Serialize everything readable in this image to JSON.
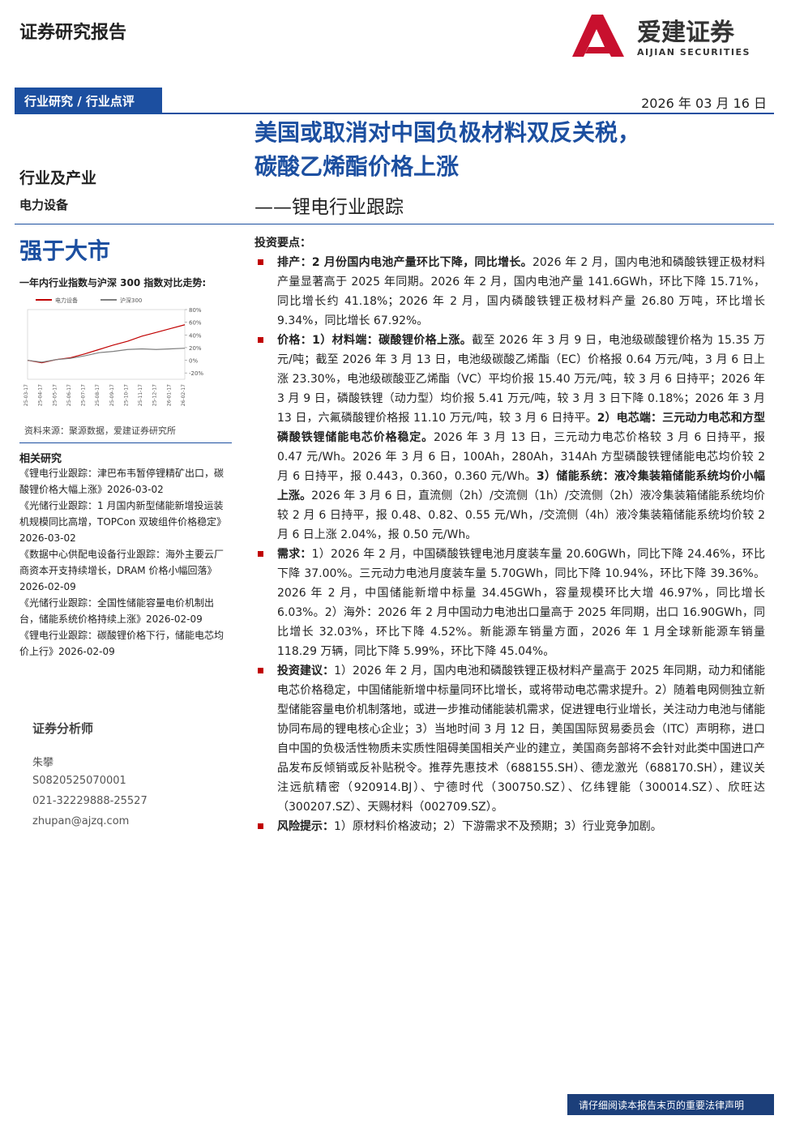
{
  "header": {
    "doc_type": "证券研究报告",
    "logo_name": "爱建证券",
    "logo_en": "AIJIAN SECURITIES",
    "category": "行业研究 / 行业点评",
    "date": "2026 年 03 月 16 日"
  },
  "title": {
    "line1": "美国或取消对中国负极材料双反关税，",
    "line2": "碳酸乙烯酯价格上涨",
    "subtitle": "——锂电行业跟踪"
  },
  "sidebar": {
    "sector_label": "行业及产业",
    "sector": "电力设备",
    "rating": "强于大市",
    "chart_caption": "一年内行业指数与沪深 300 指数对比走势:",
    "source": "资料来源：聚源数据，爱建证券研究所",
    "related_title": "相关研究",
    "related": [
      "《锂电行业跟踪：津巴布韦暂停锂精矿出口，碳酸锂价格大幅上涨》2026-03-02",
      "《光储行业跟踪：1 月国内新型储能新增投运装机规模同比高增，TOPCon 双玻组件价格稳定》2026-03-02",
      "《数据中心供配电设备行业跟踪：海外主要云厂商资本开支持续增长，DRAM 价格小幅回落》2026-02-09",
      "《光储行业跟踪：全国性储能容量电价机制出台，储能系统价格持续上涨》2026-02-09",
      "《锂电行业跟踪：碳酸锂价格下行，储能电芯均价上行》2026-02-09"
    ],
    "analyst_title": "证券分析师",
    "analyst": {
      "name": "朱攀",
      "cert": "S0820525070001",
      "phone": "021-32229888-25527",
      "email": "zhupan@ajzq.com"
    }
  },
  "chart_data": {
    "type": "line",
    "categories": [
      "25-03-17",
      "25-04-17",
      "25-05-17",
      "25-06-17",
      "25-07-17",
      "25-08-17",
      "25-09-17",
      "25-10-17",
      "25-11-17",
      "25-12-17",
      "26-01-17",
      "26-02-17"
    ],
    "series": [
      {
        "name": "电力设备",
        "color": "#c00000",
        "values": [
          0,
          -4,
          1,
          4,
          10,
          17,
          24,
          30,
          38,
          44,
          50,
          56
        ]
      },
      {
        "name": "沪深300",
        "color": "#7f7f7f",
        "values": [
          0,
          -3,
          1,
          3,
          7,
          12,
          14,
          17,
          18,
          17,
          18,
          19
        ]
      }
    ],
    "ylim": [
      -30,
      80
    ],
    "yticks": [
      {
        "value": -20,
        "label": "-20%"
      },
      {
        "value": 0,
        "label": "0%"
      },
      {
        "value": 20,
        "label": "20%"
      },
      {
        "value": 40,
        "label": "40%"
      },
      {
        "value": 60,
        "label": "60%"
      },
      {
        "value": 80,
        "label": "80%"
      }
    ]
  },
  "key_points": {
    "title": "投资要点：",
    "items": [
      {
        "parts": [
          {
            "text": "排产：2 月份国内电池产量环比下降，同比增长。",
            "bold": true
          },
          {
            "text": "2026 年 2 月，国内电池和磷酸铁锂正极材料产量显著高于 2025 年同期。2026 年 2 月，国内电池产量 141.6GWh，环比下降 15.71%，同比增长约 41.18%；2026 年 2 月，国内磷酸铁锂正极材料产量 26.80 万吨，环比增长 9.34%，同比增长 67.92%。",
            "bold": false
          }
        ]
      },
      {
        "parts": [
          {
            "text": "价格：1）材料端：碳酸锂价格上涨。",
            "bold": true
          },
          {
            "text": "截至 2026 年 3 月 9 日，电池级碳酸锂价格为 15.35 万元/吨；截至 2026 年 3 月 13 日，电池级碳酸乙烯酯（EC）价格报 0.64 万元/吨，3 月 6 日上涨 23.30%，电池级碳酸亚乙烯酯（VC）平均价报 15.40 万元/吨，较 3 月 6 日持平；2026 年 3 月 9 日，磷酸铁锂（动力型）均价报 5.41 万元/吨，较 3 月 3 日下降 0.18%；2026 年 3 月 13 日，六氟磷酸锂价格报 11.10 万元/吨，较 3 月 6 日持平。",
            "bold": false
          },
          {
            "text": "2）电芯端：三元动力电芯和方型磷酸铁锂储能电芯价格稳定。",
            "bold": true
          },
          {
            "text": "2026 年 3 月 13 日，三元动力电芯价格较 3 月 6 日持平，报 0.47 元/Wh。2026 年 3 月 6 日，100Ah，280Ah，314Ah 方型磷酸铁锂储能电芯均价较 2 月 6 日持平，报 0.443，0.360，0.360 元/Wh。",
            "bold": false
          },
          {
            "text": "3）储能系统：液冷集装箱储能系统均价小幅上涨。",
            "bold": true
          },
          {
            "text": "2026 年 3 月 6 日，直流侧（2h）/交流侧（1h）/交流侧（2h）液冷集装箱储能系统均价较 2 月 6 日持平，报 0.48、0.82、0.55 元/Wh，/交流侧（4h）液冷集装箱储能系统均价较 2 月 6 日上涨 2.04%，报 0.50 元/Wh。",
            "bold": false
          }
        ]
      },
      {
        "parts": [
          {
            "text": "需求：",
            "bold": true
          },
          {
            "text": "1）2026 年 2 月，中国磷酸铁锂电池月度装车量 20.60GWh，同比下降 24.46%，环比下降 37.00%。三元动力电池月度装车量 5.70GWh，同比下降 10.94%，环比下降 39.36%。2026 年 2 月，中国储能新增中标量 34.45GWh，容量规模环比大增 46.97%，同比增长 6.03%。2）海外：2026 年 2 月中国动力电池出口量高于 2025 年同期，出口 16.90GWh，同比增长 32.03%，环比下降 4.52%。新能源车销量方面，2026 年 1 月全球新能源车销量 118.29 万辆，同比下降 5.99%，环比下降 45.04%。",
            "bold": false
          }
        ]
      },
      {
        "parts": [
          {
            "text": "投资建议：",
            "bold": true
          },
          {
            "text": "1）2026 年 2 月，国内电池和磷酸铁锂正极材料产量高于 2025 年同期，动力和储能电芯价格稳定，中国储能新增中标量同环比增长，或将带动电芯需求提升。2）随着电网侧独立新型储能容量电价机制落地，或进一步推动储能装机需求，促进锂电行业增长，关注动力电池与储能协同布局的锂电核心企业；3）当地时间 3 月 12 日，美国国际贸易委员会（ITC）声明称，进口自中国的负极活性物质未实质性阻碍美国相关产业的建立，美国商务部将不会针对此类中国进口产品发布反倾销或反补贴税令。推荐先惠技术（688155.SH）、德龙激光（688170.SH），建议关注远航精密（920914.BJ）、宁德时代（300750.SZ）、亿纬锂能（300014.SZ）、欣旺达（300207.SZ）、天赐材料（002709.SZ）。",
            "bold": false
          }
        ]
      },
      {
        "parts": [
          {
            "text": "风险提示：",
            "bold": true
          },
          {
            "text": "1）原材料价格波动；2）下游需求不及预期；3）行业竞争加剧。",
            "bold": false
          }
        ]
      }
    ]
  },
  "footer": {
    "notice": "请仔细阅读本报告末页的重要法律声明"
  }
}
